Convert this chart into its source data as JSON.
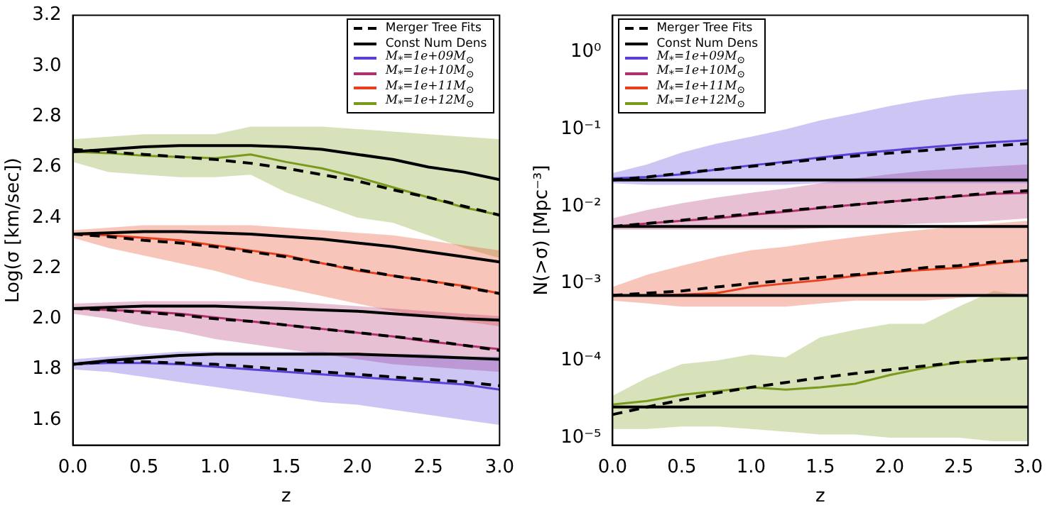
{
  "chart_data": [
    {
      "type": "line",
      "xlabel": "z",
      "ylabel": "Log(σ [km/sec])",
      "legend": "top right",
      "x": [
        0,
        0.25,
        0.5,
        0.75,
        1,
        1.25,
        1.5,
        1.75,
        2,
        2.25,
        2.5,
        2.75,
        3
      ],
      "xlim": [
        0,
        3
      ],
      "xticks": [
        {
          "value": 0,
          "label": "0.0"
        },
        0.5,
        {
          "value": 1,
          "label": "1.0"
        },
        1.5,
        {
          "value": 2,
          "label": "2.0"
        },
        2.5,
        {
          "value": 3,
          "label": "3.0"
        }
      ],
      "ylim": [
        1.5,
        3.2
      ],
      "yticks": [
        1.6,
        1.8,
        {
          "value": 2,
          "label": "2.0"
        },
        2.2,
        2.4,
        2.6,
        2.8,
        {
          "value": 3,
          "label": "3.0"
        },
        3.2
      ],
      "series": [
        {
          "name": "Merger Tree Fits",
          "color": "#000000",
          "line_style": "dashed",
          "values": [
            1.82,
            1.83,
            1.83,
            1.825,
            1.82,
            1.81,
            1.8,
            1.79,
            1.78,
            1.77,
            1.76,
            1.75,
            1.735
          ]
        },
        {
          "name": "Const Num Dens",
          "color": "#000000",
          "line_style": "solid",
          "values": [
            1.82,
            1.835,
            1.845,
            1.855,
            1.86,
            1.86,
            1.86,
            1.86,
            1.86,
            1.855,
            1.85,
            1.845,
            1.84
          ]
        },
        {
          "name": "M$_{*}$=1e+09M$_{⊙}$",
          "color": "#5b3fd6",
          "values": [
            1.82,
            1.825,
            1.825,
            1.82,
            1.81,
            1.8,
            1.79,
            1.78,
            1.77,
            1.76,
            1.75,
            1.74,
            1.72
          ],
          "lower": [
            1.8,
            1.79,
            1.77,
            1.75,
            1.73,
            1.71,
            1.69,
            1.67,
            1.66,
            1.64,
            1.62,
            1.6,
            1.58
          ],
          "upper": [
            1.84,
            1.85,
            1.86,
            1.87,
            1.87,
            1.87,
            1.87,
            1.87,
            1.86,
            1.86,
            1.86,
            1.85,
            1.85
          ]
        },
        {
          "name": "M$_{*}$=1e+10M$_{⊙}$",
          "color": "#b0306e",
          "values": [
            2.04,
            2.035,
            2.03,
            2.02,
            2.005,
            1.99,
            1.975,
            1.96,
            1.945,
            1.93,
            1.91,
            1.895,
            1.88
          ],
          "lower": [
            2.02,
            2,
            1.97,
            1.95,
            1.92,
            1.9,
            1.88,
            1.86,
            1.84,
            1.82,
            1.81,
            1.8,
            1.79
          ],
          "upper": [
            2.06,
            2.065,
            2.07,
            2.07,
            2.07,
            2.07,
            2.07,
            2.06,
            2.05,
            2.04,
            2.03,
            2.02,
            2.01
          ]
        },
        {
          "name": "M$_{*}$=1e+11M$_{⊙}$",
          "color": "#e8401c",
          "values": [
            2.335,
            2.33,
            2.32,
            2.31,
            2.29,
            2.27,
            2.25,
            2.22,
            2.19,
            2.17,
            2.15,
            2.13,
            2.1
          ],
          "lower": [
            2.32,
            2.28,
            2.25,
            2.22,
            2.19,
            2.15,
            2.12,
            2.09,
            2.06,
            2.03,
            2.01,
            1.99,
            1.97
          ],
          "upper": [
            2.35,
            2.36,
            2.37,
            2.37,
            2.37,
            2.37,
            2.36,
            2.35,
            2.34,
            2.33,
            2.31,
            2.29,
            2.27
          ]
        },
        {
          "name": "M$_{*}$=1e+12M$_{⊙}$",
          "color": "#7a9a1c",
          "values": [
            2.66,
            2.655,
            2.645,
            2.64,
            2.635,
            2.65,
            2.62,
            2.595,
            2.56,
            2.52,
            2.48,
            2.44,
            2.41
          ],
          "lower": [
            2.62,
            2.58,
            2.57,
            2.56,
            2.56,
            2.57,
            2.5,
            2.45,
            2.4,
            2.38,
            2.33,
            2.28,
            2.24
          ],
          "upper": [
            2.71,
            2.72,
            2.73,
            2.73,
            2.73,
            2.76,
            2.76,
            2.76,
            2.75,
            2.74,
            2.73,
            2.72,
            2.71
          ]
        },
        {
          "color": "#000000",
          "line_style": "dashed",
          "values": [
            2.04,
            2.035,
            2.025,
            2.015,
            2,
            1.99,
            1.975,
            1.96,
            1.945,
            1.93,
            1.915,
            1.895,
            1.875
          ]
        },
        {
          "color": "#000000",
          "line_style": "solid",
          "values": [
            2.04,
            2.045,
            2.05,
            2.05,
            2.05,
            2.045,
            2.04,
            2.035,
            2.03,
            2.02,
            2.01,
            2,
            1.995
          ]
        },
        {
          "color": "#000000",
          "line_style": "dashed",
          "values": [
            2.335,
            2.325,
            2.31,
            2.3,
            2.285,
            2.265,
            2.245,
            2.22,
            2.195,
            2.17,
            2.15,
            2.125,
            2.1
          ]
        },
        {
          "color": "#000000",
          "line_style": "solid",
          "values": [
            2.335,
            2.34,
            2.345,
            2.345,
            2.34,
            2.335,
            2.325,
            2.315,
            2.3,
            2.285,
            2.265,
            2.245,
            2.225
          ]
        },
        {
          "color": "#000000",
          "line_style": "dashed",
          "values": [
            2.67,
            2.66,
            2.65,
            2.64,
            2.63,
            2.615,
            2.595,
            2.57,
            2.545,
            2.51,
            2.48,
            2.445,
            2.41
          ]
        },
        {
          "color": "#000000",
          "line_style": "solid",
          "values": [
            2.66,
            2.67,
            2.68,
            2.685,
            2.685,
            2.685,
            2.68,
            2.67,
            2.65,
            2.63,
            2.6,
            2.58,
            2.55
          ]
        }
      ]
    },
    {
      "type": "line",
      "xlabel": "z",
      "ylabel": "N(>σ) [Mpc⁻³]",
      "legend": "top left",
      "log": "y",
      "x": [
        0,
        0.25,
        0.5,
        0.75,
        1,
        1.25,
        1.5,
        1.75,
        2,
        2.25,
        2.5,
        2.75,
        3
      ],
      "xlim": [
        0,
        3
      ],
      "xticks": [
        {
          "value": 0,
          "label": "0.0"
        },
        0.5,
        {
          "value": 1,
          "label": "1.0"
        },
        1.5,
        {
          "value": 2,
          "label": "2.0"
        },
        2.5,
        {
          "value": 3,
          "label": "3.0"
        }
      ],
      "ylim": [
        8e-06,
        3
      ],
      "yticks": [
        {
          "value": 1e-05,
          "label": "10⁻⁵"
        },
        {
          "value": 0.0001,
          "label": "10⁻⁴"
        },
        {
          "value": 0.001,
          "label": "10⁻³"
        },
        {
          "value": 0.01,
          "label": "10⁻²"
        },
        {
          "value": 0.1,
          "label": "10⁻¹"
        },
        {
          "value": 1,
          "label": "10⁰"
        }
      ],
      "series": [
        {
          "name": "Merger Tree Fits",
          "color": "#000000",
          "line_style": "dashed",
          "values": [
            0.022,
            0.024,
            0.027,
            0.03,
            0.033,
            0.037,
            0.041,
            0.045,
            0.049,
            0.053,
            0.057,
            0.061,
            0.065
          ]
        },
        {
          "name": "Const Num Dens",
          "color": "#000000",
          "line_style": "solid",
          "values": [
            0.022,
            0.022,
            0.022,
            0.022,
            0.022,
            0.022,
            0.022,
            0.022,
            0.022,
            0.022,
            0.022,
            0.022,
            0.022
          ]
        },
        {
          "name": "M$_{*}$=1e+09M$_{⊙}$",
          "color": "#5b3fd6",
          "values": [
            0.023,
            0.024,
            0.026,
            0.03,
            0.034,
            0.038,
            0.043,
            0.048,
            0.053,
            0.058,
            0.063,
            0.068,
            0.072
          ],
          "lower": [
            0.02,
            0.019,
            0.019,
            0.019,
            0.019,
            0.019,
            0.02,
            0.02,
            0.02,
            0.02,
            0.02,
            0.02,
            0.02
          ],
          "upper": [
            0.027,
            0.035,
            0.05,
            0.065,
            0.08,
            0.1,
            0.13,
            0.16,
            0.2,
            0.24,
            0.28,
            0.31,
            0.33
          ]
        },
        {
          "name": "M$_{*}$=1e+10M$_{⊙}$",
          "color": "#b0306e",
          "values": [
            0.0055,
            0.006,
            0.0065,
            0.007,
            0.0078,
            0.0085,
            0.0095,
            0.0105,
            0.0115,
            0.0125,
            0.0135,
            0.0145,
            0.015
          ],
          "lower": [
            0.005,
            0.005,
            0.005,
            0.005,
            0.005,
            0.005,
            0.0052,
            0.0055,
            0.0057,
            0.006,
            0.0062,
            0.0065,
            0.007
          ],
          "upper": [
            0.007,
            0.009,
            0.011,
            0.013,
            0.015,
            0.017,
            0.02,
            0.023,
            0.026,
            0.029,
            0.031,
            0.033,
            0.035
          ]
        },
        {
          "name": "M$_{*}$=1e+11M$_{⊙}$",
          "color": "#e8401c",
          "values": [
            0.0007,
            0.0007,
            0.00072,
            0.00075,
            0.0009,
            0.001,
            0.0011,
            0.00125,
            0.0014,
            0.0015,
            0.0016,
            0.0018,
            0.002
          ],
          "lower": [
            0.0006,
            0.00055,
            0.0005,
            0.0005,
            0.0005,
            0.0005,
            0.00055,
            0.0006,
            0.0006,
            0.0006,
            0.00065,
            0.0007,
            0.0007
          ],
          "upper": [
            0.0009,
            0.0013,
            0.0017,
            0.0022,
            0.0027,
            0.003,
            0.0035,
            0.004,
            0.0045,
            0.005,
            0.0055,
            0.006,
            0.0065
          ]
        },
        {
          "name": "M$_{*}$=1e+12M$_{⊙}$",
          "color": "#7a9a1c",
          "values": [
            2.7e-05,
            3e-05,
            3.6e-05,
            4e-05,
            4.5e-05,
            4.2e-05,
            4.5e-05,
            5e-05,
            6.5e-05,
            8e-05,
            9.5e-05,
            0.000105,
            0.00011
          ],
          "lower": [
            1.3e-05,
            1.3e-05,
            1.4e-05,
            1.4e-05,
            1.3e-05,
            1.2e-05,
            1.1e-05,
            1.1e-05,
            1e-05,
            1e-05,
            1e-05,
            9e-06,
            9e-06
          ],
          "upper": [
            3.5e-05,
            6e-05,
            9e-05,
            0.0001,
            0.00012,
            0.00011,
            0.0002,
            0.00025,
            0.0003,
            0.0003,
            0.0005,
            0.0008,
            0.0007
          ]
        },
        {
          "color": "#000000",
          "line_style": "dashed",
          "values": [
            0.0055,
            0.006,
            0.0066,
            0.0073,
            0.008,
            0.0088,
            0.0096,
            0.0105,
            0.0115,
            0.0125,
            0.0137,
            0.015,
            0.016
          ]
        },
        {
          "color": "#000000",
          "line_style": "solid",
          "values": [
            0.0055,
            0.0055,
            0.0055,
            0.0055,
            0.0055,
            0.0055,
            0.0055,
            0.0055,
            0.0055,
            0.0055,
            0.0055,
            0.0055,
            0.0055
          ]
        },
        {
          "color": "#000000",
          "line_style": "dashed",
          "values": [
            0.0007,
            0.00075,
            0.0008,
            0.0009,
            0.001,
            0.0011,
            0.0012,
            0.0013,
            0.0014,
            0.0016,
            0.0017,
            0.0019,
            0.002
          ]
        },
        {
          "color": "#000000",
          "line_style": "solid",
          "values": [
            0.0007,
            0.0007,
            0.0007,
            0.0007,
            0.0007,
            0.0007,
            0.0007,
            0.0007,
            0.0007,
            0.0007,
            0.0007,
            0.0007,
            0.0007
          ]
        },
        {
          "color": "#000000",
          "line_style": "dashed",
          "values": [
            2e-05,
            2.5e-05,
            3.1e-05,
            3.8e-05,
            4.5e-05,
            5.2e-05,
            6e-05,
            6.8e-05,
            7.6e-05,
            8.5e-05,
            9.5e-05,
            0.000102,
            0.000108
          ]
        },
        {
          "color": "#000000",
          "line_style": "solid",
          "values": [
            2.5e-05,
            2.5e-05,
            2.5e-05,
            2.5e-05,
            2.5e-05,
            2.5e-05,
            2.5e-05,
            2.5e-05,
            2.5e-05,
            2.5e-05,
            2.5e-05,
            2.5e-05,
            2.5e-05
          ]
        }
      ]
    }
  ]
}
